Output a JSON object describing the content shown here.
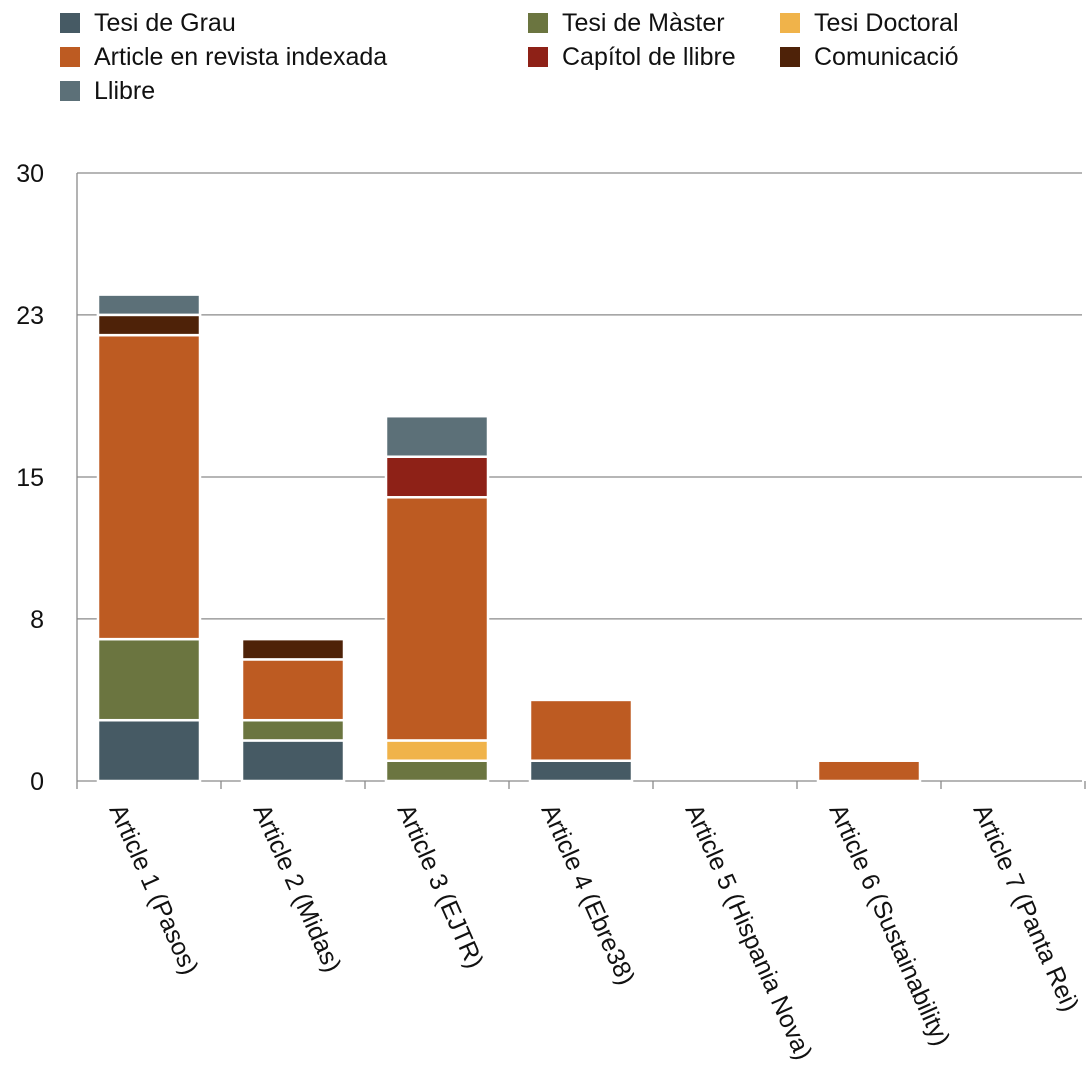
{
  "chart_data": {
    "type": "bar",
    "stacked": true,
    "categories": [
      "Article 1 (Pasos)",
      "Article 2 (Midas)",
      "Article 3 (EJTR)",
      "Article 4 (Ebre38)",
      "Article 5 (Hispania Nova)",
      "Article 6 (Sustainability)",
      "Article 7 (Panta Rei)"
    ],
    "series": [
      {
        "name": "Tesi de Grau",
        "color": "#465a64",
        "values": [
          3,
          2,
          0,
          1,
          0,
          0,
          0
        ]
      },
      {
        "name": "Tesi de Màster",
        "color": "#6b7540",
        "values": [
          4,
          1,
          1,
          0,
          0,
          0,
          0
        ]
      },
      {
        "name": "Tesi Doctoral",
        "color": "#f0b34a",
        "values": [
          0,
          0,
          1,
          0,
          0,
          0,
          0
        ]
      },
      {
        "name": "Article en revista indexada",
        "color": "#bd5b22",
        "values": [
          15,
          3,
          12,
          3,
          0,
          1,
          0
        ]
      },
      {
        "name": "Capítol de llibre",
        "color": "#8e2117",
        "values": [
          0,
          0,
          2,
          0,
          0,
          0,
          0
        ]
      },
      {
        "name": "Comunicació",
        "color": "#4e2208",
        "values": [
          1,
          1,
          0,
          0,
          0,
          0,
          0
        ]
      },
      {
        "name": "Llibre",
        "color": "#5c7078",
        "values": [
          1,
          0,
          2,
          0,
          0,
          0,
          0
        ]
      }
    ],
    "yticks": [
      "30",
      "23",
      "15",
      "8",
      "0"
    ],
    "ylim": [
      0,
      30
    ],
    "grid": true,
    "legend_position": "top",
    "title": "",
    "xlabel": "",
    "ylabel": ""
  }
}
